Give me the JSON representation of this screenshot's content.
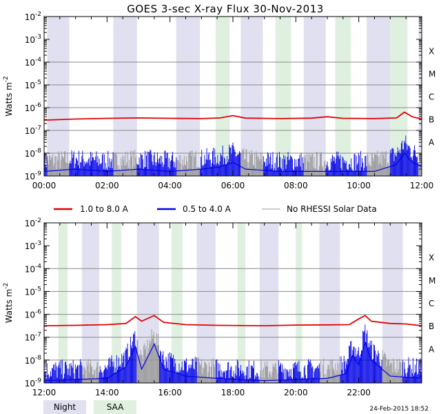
{
  "chart_data": {
    "type": "line",
    "title": "GOES 3-sec X-ray Flux   30-Nov-2013",
    "ylabel": "Watts m",
    "ylabel_sup": "-2",
    "yscale": "log",
    "ylim": [
      1e-09,
      0.01
    ],
    "y_ticks": [
      {
        "base": "10",
        "exp": "-9",
        "value": -9
      },
      {
        "base": "10",
        "exp": "-8",
        "value": -8
      },
      {
        "base": "10",
        "exp": "-7",
        "value": -7
      },
      {
        "base": "10",
        "exp": "-6",
        "value": -6
      },
      {
        "base": "10",
        "exp": "-5",
        "value": -5
      },
      {
        "base": "10",
        "exp": "-4",
        "value": -4
      },
      {
        "base": "10",
        "exp": "-3",
        "value": -3
      },
      {
        "base": "10",
        "exp": "-2",
        "value": -2
      }
    ],
    "flare_classes": [
      {
        "label": "A",
        "value": -8
      },
      {
        "label": "B",
        "value": -7
      },
      {
        "label": "C",
        "value": -6
      },
      {
        "label": "M",
        "value": -5
      },
      {
        "label": "X",
        "value": -4
      }
    ],
    "legend": [
      {
        "label": "1.0 to 8.0 A",
        "color": "#e00000"
      },
      {
        "label": "0.5 to 4.0 A",
        "color": "#0000e6"
      },
      {
        "label": "No RHESSI Solar Data",
        "color": "#999999"
      }
    ],
    "band_legend": [
      {
        "label": "Night",
        "color": "#e0e0f0"
      },
      {
        "label": "SAA",
        "color": "#e0f0e0"
      }
    ],
    "footer": "24-Feb-2015 18:52",
    "panels": [
      {
        "name": "top-panel",
        "x_start_hour": 0,
        "x_end_hour": 12,
        "x_ticks": [
          "00:00",
          "02:00",
          "04:00",
          "06:00",
          "08:00",
          "10:00",
          "12:00"
        ],
        "night": [
          [
            0.1,
            0.8
          ],
          [
            2.2,
            2.95
          ],
          [
            4.2,
            4.95
          ],
          [
            6.25,
            6.95
          ],
          [
            8.25,
            8.95
          ],
          [
            10.25,
            11.0
          ],
          [
            11.9,
            12.0
          ]
        ],
        "saa": [
          [
            5.45,
            5.9
          ],
          [
            7.35,
            7.85
          ],
          [
            9.25,
            9.75
          ],
          [
            11.0,
            11.55
          ]
        ],
        "long_series": [
          [
            0.0,
            -6.55
          ],
          [
            1.0,
            -6.5
          ],
          [
            2.0,
            -6.47
          ],
          [
            3.0,
            -6.45
          ],
          [
            4.0,
            -6.47
          ],
          [
            5.0,
            -6.48
          ],
          [
            5.6,
            -6.45
          ],
          [
            6.0,
            -6.35
          ],
          [
            6.4,
            -6.46
          ],
          [
            7.5,
            -6.48
          ],
          [
            8.5,
            -6.46
          ],
          [
            9.0,
            -6.4
          ],
          [
            9.5,
            -6.47
          ],
          [
            10.5,
            -6.48
          ],
          [
            11.2,
            -6.45
          ],
          [
            11.45,
            -6.2
          ],
          [
            11.7,
            -6.4
          ],
          [
            12.0,
            -6.5
          ]
        ],
        "short_series": [
          [
            0.0,
            -8.8
          ],
          [
            1.0,
            -8.7
          ],
          [
            2.0,
            -8.8
          ],
          [
            3.0,
            -8.7
          ],
          [
            4.0,
            -8.8
          ],
          [
            5.0,
            -8.7
          ],
          [
            5.6,
            -8.6
          ],
          [
            6.0,
            -8.4
          ],
          [
            6.4,
            -8.7
          ],
          [
            7.5,
            -8.8
          ],
          [
            8.5,
            -8.8
          ],
          [
            9.5,
            -8.8
          ],
          [
            10.5,
            -8.8
          ],
          [
            11.2,
            -8.5
          ],
          [
            11.45,
            -8.0
          ],
          [
            11.7,
            -8.4
          ],
          [
            12.0,
            -8.6
          ]
        ]
      },
      {
        "name": "bottom-panel",
        "x_start_hour": 12,
        "x_end_hour": 24,
        "x_ticks": [
          "12:00",
          "14:00",
          "16:00",
          "18:00",
          "20:00",
          "22:00"
        ],
        "night": [
          [
            13.2,
            13.75
          ],
          [
            14.95,
            15.65
          ],
          [
            16.85,
            17.45
          ],
          [
            18.85,
            19.45
          ],
          [
            20.75,
            21.4
          ],
          [
            22.75,
            23.4
          ]
        ],
        "saa": [
          [
            12.45,
            12.75
          ],
          [
            14.15,
            14.45
          ],
          [
            16.05,
            16.4
          ],
          [
            18.15,
            18.4
          ],
          [
            20.0,
            20.2
          ]
        ],
        "long_series": [
          [
            12.0,
            -6.5
          ],
          [
            13.0,
            -6.48
          ],
          [
            14.0,
            -6.45
          ],
          [
            14.6,
            -6.4
          ],
          [
            14.9,
            -6.1
          ],
          [
            15.1,
            -6.3
          ],
          [
            15.5,
            -6.05
          ],
          [
            15.8,
            -6.35
          ],
          [
            16.5,
            -6.45
          ],
          [
            17.5,
            -6.48
          ],
          [
            19.0,
            -6.5
          ],
          [
            20.0,
            -6.47
          ],
          [
            21.0,
            -6.46
          ],
          [
            21.7,
            -6.45
          ],
          [
            22.0,
            -6.2
          ],
          [
            22.2,
            -6.05
          ],
          [
            22.4,
            -6.3
          ],
          [
            23.0,
            -6.4
          ],
          [
            23.5,
            -6.42
          ],
          [
            24.0,
            -6.5
          ]
        ],
        "short_series": [
          [
            12.0,
            -8.9
          ],
          [
            13.0,
            -8.85
          ],
          [
            14.0,
            -8.8
          ],
          [
            14.6,
            -8.3
          ],
          [
            14.9,
            -7.4
          ],
          [
            15.1,
            -8.4
          ],
          [
            15.5,
            -7.3
          ],
          [
            15.8,
            -8.4
          ],
          [
            16.5,
            -8.7
          ],
          [
            17.5,
            -8.8
          ],
          [
            19.0,
            -8.9
          ],
          [
            20.0,
            -8.85
          ],
          [
            21.0,
            -8.8
          ],
          [
            21.6,
            -8.6
          ],
          [
            21.8,
            -7.8
          ],
          [
            22.0,
            -8.2
          ],
          [
            22.2,
            -7.2
          ],
          [
            22.4,
            -8.0
          ],
          [
            23.0,
            -8.7
          ],
          [
            24.0,
            -8.8
          ]
        ]
      }
    ]
  }
}
